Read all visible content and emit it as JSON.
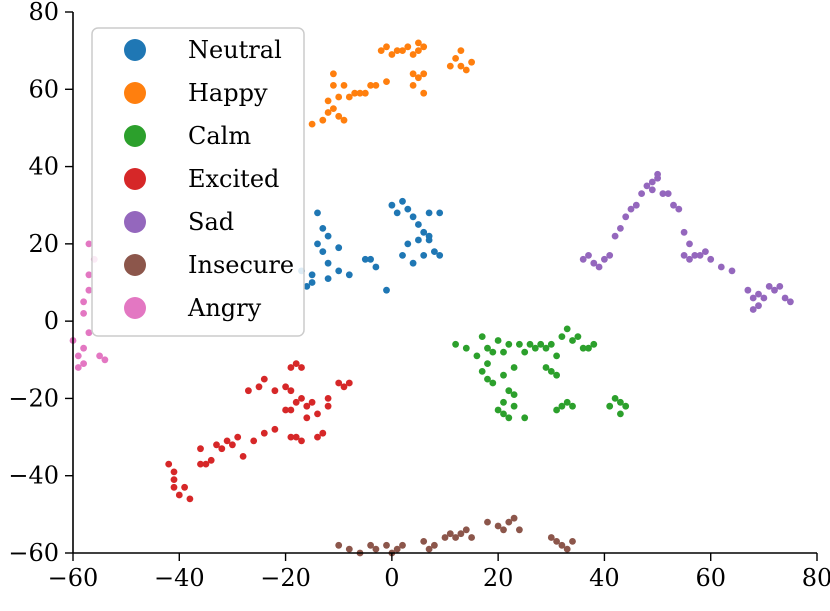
{
  "chart_data": {
    "type": "scatter",
    "title": "",
    "xlabel": "",
    "ylabel": "",
    "xlim": [
      -60,
      80
    ],
    "ylim": [
      -60,
      80
    ],
    "xticks": [
      -60,
      -40,
      -20,
      0,
      20,
      40,
      60,
      80
    ],
    "yticks": [
      -60,
      -40,
      -20,
      0,
      20,
      40,
      60,
      80
    ],
    "xtick_labels": [
      "−60",
      "−40",
      "−20",
      "0",
      "20",
      "40",
      "60",
      "80"
    ],
    "ytick_labels": [
      "−60",
      "−40",
      "−20",
      "0",
      "20",
      "40",
      "60",
      "80"
    ],
    "grid": false,
    "legend": "upper-left",
    "series": [
      {
        "name": "Neutral",
        "color": "#1f77b4",
        "points": [
          [
            -14,
            28
          ],
          [
            -13,
            24
          ],
          [
            -12,
            22
          ],
          [
            -14,
            20
          ],
          [
            -13,
            18
          ],
          [
            -10,
            19
          ],
          [
            -12,
            15
          ],
          [
            -15,
            12
          ],
          [
            -12,
            11
          ],
          [
            -10,
            13
          ],
          [
            -8,
            12
          ],
          [
            -15,
            10
          ],
          [
            -16,
            9
          ],
          [
            -17,
            13
          ],
          [
            -5,
            16
          ],
          [
            -3,
            14
          ],
          [
            -4,
            16
          ],
          [
            -1,
            8
          ],
          [
            0,
            30
          ],
          [
            1,
            28
          ],
          [
            2,
            31
          ],
          [
            3,
            29
          ],
          [
            4,
            27
          ],
          [
            5,
            25
          ],
          [
            6,
            23
          ],
          [
            7,
            22
          ],
          [
            5,
            21
          ],
          [
            3,
            20
          ],
          [
            2,
            17
          ],
          [
            4,
            15
          ],
          [
            6,
            17
          ],
          [
            7,
            21
          ],
          [
            8,
            18
          ],
          [
            9,
            17
          ],
          [
            7,
            28
          ],
          [
            9,
            28
          ]
        ]
      },
      {
        "name": "Happy",
        "color": "#ff7f0e",
        "points": [
          [
            -15,
            51
          ],
          [
            -13,
            52
          ],
          [
            -12,
            54
          ],
          [
            -11,
            55
          ],
          [
            -10,
            53
          ],
          [
            -9,
            52
          ],
          [
            -12,
            57
          ],
          [
            -10,
            58
          ],
          [
            -8,
            58
          ],
          [
            -11,
            61
          ],
          [
            -9,
            61
          ],
          [
            -11,
            64
          ],
          [
            -7,
            59
          ],
          [
            -6,
            59
          ],
          [
            -5,
            59
          ],
          [
            -4,
            61
          ],
          [
            -3,
            61
          ],
          [
            -1,
            62
          ],
          [
            -2,
            70
          ],
          [
            -1,
            71
          ],
          [
            0,
            69
          ],
          [
            1,
            70
          ],
          [
            2,
            70
          ],
          [
            3,
            71
          ],
          [
            4,
            69
          ],
          [
            5,
            70
          ],
          [
            5,
            72
          ],
          [
            6,
            71
          ],
          [
            4,
            64
          ],
          [
            5,
            63
          ],
          [
            6,
            64
          ],
          [
            4,
            61
          ],
          [
            6,
            59
          ],
          [
            11,
            66
          ],
          [
            12,
            68
          ],
          [
            13,
            70
          ],
          [
            13,
            66
          ],
          [
            14,
            65
          ],
          [
            15,
            67
          ]
        ]
      },
      {
        "name": "Calm",
        "color": "#2ca02c",
        "points": [
          [
            12,
            -6
          ],
          [
            14,
            -7
          ],
          [
            16,
            -9
          ],
          [
            17,
            -4
          ],
          [
            18,
            -7
          ],
          [
            18,
            -11
          ],
          [
            19,
            -8
          ],
          [
            20,
            -5
          ],
          [
            21,
            -8
          ],
          [
            22,
            -6
          ],
          [
            17,
            -13
          ],
          [
            18,
            -15
          ],
          [
            19,
            -16
          ],
          [
            21,
            -14
          ],
          [
            23,
            -12
          ],
          [
            25,
            -8
          ],
          [
            24,
            -6
          ],
          [
            26,
            -6
          ],
          [
            27,
            -7
          ],
          [
            28,
            -6
          ],
          [
            29,
            -7
          ],
          [
            30,
            -6
          ],
          [
            31,
            -9
          ],
          [
            32,
            -4
          ],
          [
            33,
            -2
          ],
          [
            34,
            -5
          ],
          [
            35,
            -4
          ],
          [
            36,
            -7
          ],
          [
            37,
            -7
          ],
          [
            38,
            -6
          ],
          [
            30,
            -13
          ],
          [
            31,
            -14
          ],
          [
            29,
            -12
          ],
          [
            22,
            -18
          ],
          [
            23,
            -19
          ],
          [
            21,
            -21
          ],
          [
            20,
            -23
          ],
          [
            21,
            -24
          ],
          [
            22,
            -25
          ],
          [
            23,
            -22
          ],
          [
            25,
            -25
          ],
          [
            31,
            -23
          ],
          [
            32,
            -22
          ],
          [
            33,
            -21
          ],
          [
            34,
            -22
          ],
          [
            42,
            -20
          ],
          [
            43,
            -21
          ],
          [
            44,
            -22
          ],
          [
            43,
            -24
          ],
          [
            41,
            -22
          ]
        ]
      },
      {
        "name": "Excited",
        "color": "#d62728",
        "points": [
          [
            -42,
            -37
          ],
          [
            -41,
            -39
          ],
          [
            -41,
            -41
          ],
          [
            -41,
            -43
          ],
          [
            -40,
            -45
          ],
          [
            -39,
            -43
          ],
          [
            -38,
            -46
          ],
          [
            -36,
            -37
          ],
          [
            -35,
            -37
          ],
          [
            -34,
            -36
          ],
          [
            -36,
            -33
          ],
          [
            -33,
            -32
          ],
          [
            -32,
            -33
          ],
          [
            -31,
            -31
          ],
          [
            -30,
            -32
          ],
          [
            -29,
            -30
          ],
          [
            -28,
            -35
          ],
          [
            -26,
            -31
          ],
          [
            -24,
            -29
          ],
          [
            -22,
            -28
          ],
          [
            -27,
            -18
          ],
          [
            -25,
            -17
          ],
          [
            -24,
            -15
          ],
          [
            -22,
            -18
          ],
          [
            -20,
            -17
          ],
          [
            -19,
            -18
          ],
          [
            -18,
            -21
          ],
          [
            -20,
            -23
          ],
          [
            -19,
            -23
          ],
          [
            -17,
            -20
          ],
          [
            -16,
            -22
          ],
          [
            -15,
            -21
          ],
          [
            -16,
            -25
          ],
          [
            -14,
            -24
          ],
          [
            -19,
            -12
          ],
          [
            -18,
            -11
          ],
          [
            -17,
            -12
          ],
          [
            -19,
            -30
          ],
          [
            -18,
            -30
          ],
          [
            -17,
            -31
          ],
          [
            -14,
            -30
          ],
          [
            -13,
            -29
          ],
          [
            -10,
            -16
          ],
          [
            -9,
            -17
          ],
          [
            -8,
            -16
          ],
          [
            -12,
            -22
          ],
          [
            -12,
            -20
          ]
        ]
      },
      {
        "name": "Sad",
        "color": "#9467bd",
        "points": [
          [
            36,
            16
          ],
          [
            37,
            17
          ],
          [
            38,
            15
          ],
          [
            39,
            14
          ],
          [
            40,
            16
          ],
          [
            41,
            17
          ],
          [
            42,
            22
          ],
          [
            43,
            24
          ],
          [
            44,
            27
          ],
          [
            45,
            29
          ],
          [
            46,
            30
          ],
          [
            47,
            33
          ],
          [
            48,
            35
          ],
          [
            49,
            36
          ],
          [
            50,
            37
          ],
          [
            50,
            38
          ],
          [
            49,
            34
          ],
          [
            51,
            33
          ],
          [
            52,
            33
          ],
          [
            53,
            30
          ],
          [
            54,
            29
          ],
          [
            55,
            23
          ],
          [
            56,
            20
          ],
          [
            55,
            17
          ],
          [
            56,
            16
          ],
          [
            57,
            17
          ],
          [
            58,
            17
          ],
          [
            59,
            18
          ],
          [
            60,
            16
          ],
          [
            62,
            14
          ],
          [
            64,
            13
          ],
          [
            67,
            8
          ],
          [
            68,
            6
          ],
          [
            69,
            7
          ],
          [
            70,
            6
          ],
          [
            71,
            9
          ],
          [
            72,
            8
          ],
          [
            73,
            9
          ],
          [
            74,
            6
          ],
          [
            75,
            5
          ],
          [
            68,
            3
          ],
          [
            69,
            4
          ]
        ]
      },
      {
        "name": "Insecure",
        "color": "#8c564b",
        "points": [
          [
            -10,
            -58
          ],
          [
            -8,
            -59
          ],
          [
            -6,
            -60
          ],
          [
            -4,
            -58
          ],
          [
            -3,
            -59
          ],
          [
            -1,
            -58
          ],
          [
            0,
            -60
          ],
          [
            1,
            -59
          ],
          [
            2,
            -58
          ],
          [
            6,
            -57
          ],
          [
            7,
            -59
          ],
          [
            8,
            -58
          ],
          [
            10,
            -56
          ],
          [
            11,
            -55
          ],
          [
            12,
            -56
          ],
          [
            13,
            -55
          ],
          [
            14,
            -54
          ],
          [
            15,
            -56
          ],
          [
            18,
            -52
          ],
          [
            20,
            -53
          ],
          [
            21,
            -54
          ],
          [
            22,
            -52
          ],
          [
            23,
            -51
          ],
          [
            24,
            -54
          ],
          [
            30,
            -56
          ],
          [
            31,
            -57
          ],
          [
            32,
            -58
          ],
          [
            33,
            -59
          ],
          [
            34,
            -57
          ]
        ]
      },
      {
        "name": "Angry",
        "color": "#e377c2",
        "points": [
          [
            -60,
            -5
          ],
          [
            -59,
            -9
          ],
          [
            -59,
            -12
          ],
          [
            -58,
            -11
          ],
          [
            -58,
            -7
          ],
          [
            -57,
            -3
          ],
          [
            -58,
            2
          ],
          [
            -58,
            5
          ],
          [
            -57,
            8
          ],
          [
            -57,
            12
          ],
          [
            -56,
            16
          ],
          [
            -57,
            20
          ],
          [
            -55,
            -9
          ],
          [
            -54,
            -10
          ]
        ]
      }
    ]
  }
}
